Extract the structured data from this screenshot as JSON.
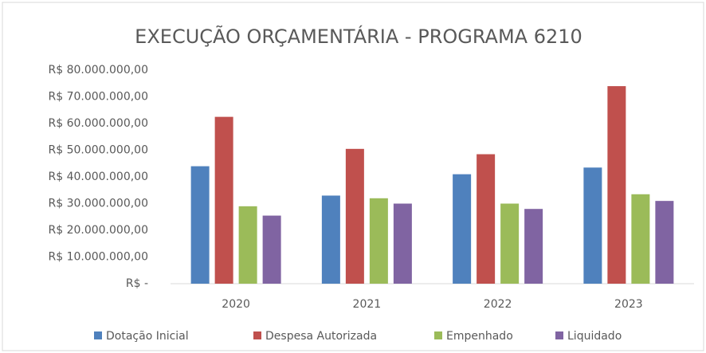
{
  "chart_data": {
    "type": "bar",
    "title": "EXECUÇÃO ORÇAMENTÁRIA - PROGRAMA 6210",
    "categories": [
      "2020",
      "2021",
      "2022",
      "2023"
    ],
    "series": [
      {
        "name": "Dotação Inicial",
        "color": "#4f81bd",
        "values": [
          44000000,
          33000000,
          41000000,
          43500000
        ]
      },
      {
        "name": "Despesa Autorizada",
        "color": "#c0504d",
        "values": [
          62500000,
          50500000,
          48500000,
          74000000
        ]
      },
      {
        "name": "Empenhado",
        "color": "#9bbb59",
        "values": [
          29000000,
          32000000,
          30000000,
          33500000
        ]
      },
      {
        "name": "Liquidado",
        "color": "#8064a2",
        "values": [
          25500000,
          30000000,
          28000000,
          31000000
        ]
      }
    ],
    "ylim": [
      0,
      80000000
    ],
    "yticks": [
      {
        "value": 0,
        "label": "R$ -"
      },
      {
        "value": 10000000,
        "label": "R$ 10.000.000,00"
      },
      {
        "value": 20000000,
        "label": "R$ 20.000.000,00"
      },
      {
        "value": 30000000,
        "label": "R$ 30.000.000,00"
      },
      {
        "value": 40000000,
        "label": "R$ 40.000.000,00"
      },
      {
        "value": 50000000,
        "label": "R$ 50.000.000,00"
      },
      {
        "value": 60000000,
        "label": "R$ 60.000.000,00"
      },
      {
        "value": 70000000,
        "label": "R$ 70.000.000,00"
      },
      {
        "value": 80000000,
        "label": "R$ 80.000.000,00"
      }
    ],
    "grid": false,
    "legend": "bottom"
  }
}
